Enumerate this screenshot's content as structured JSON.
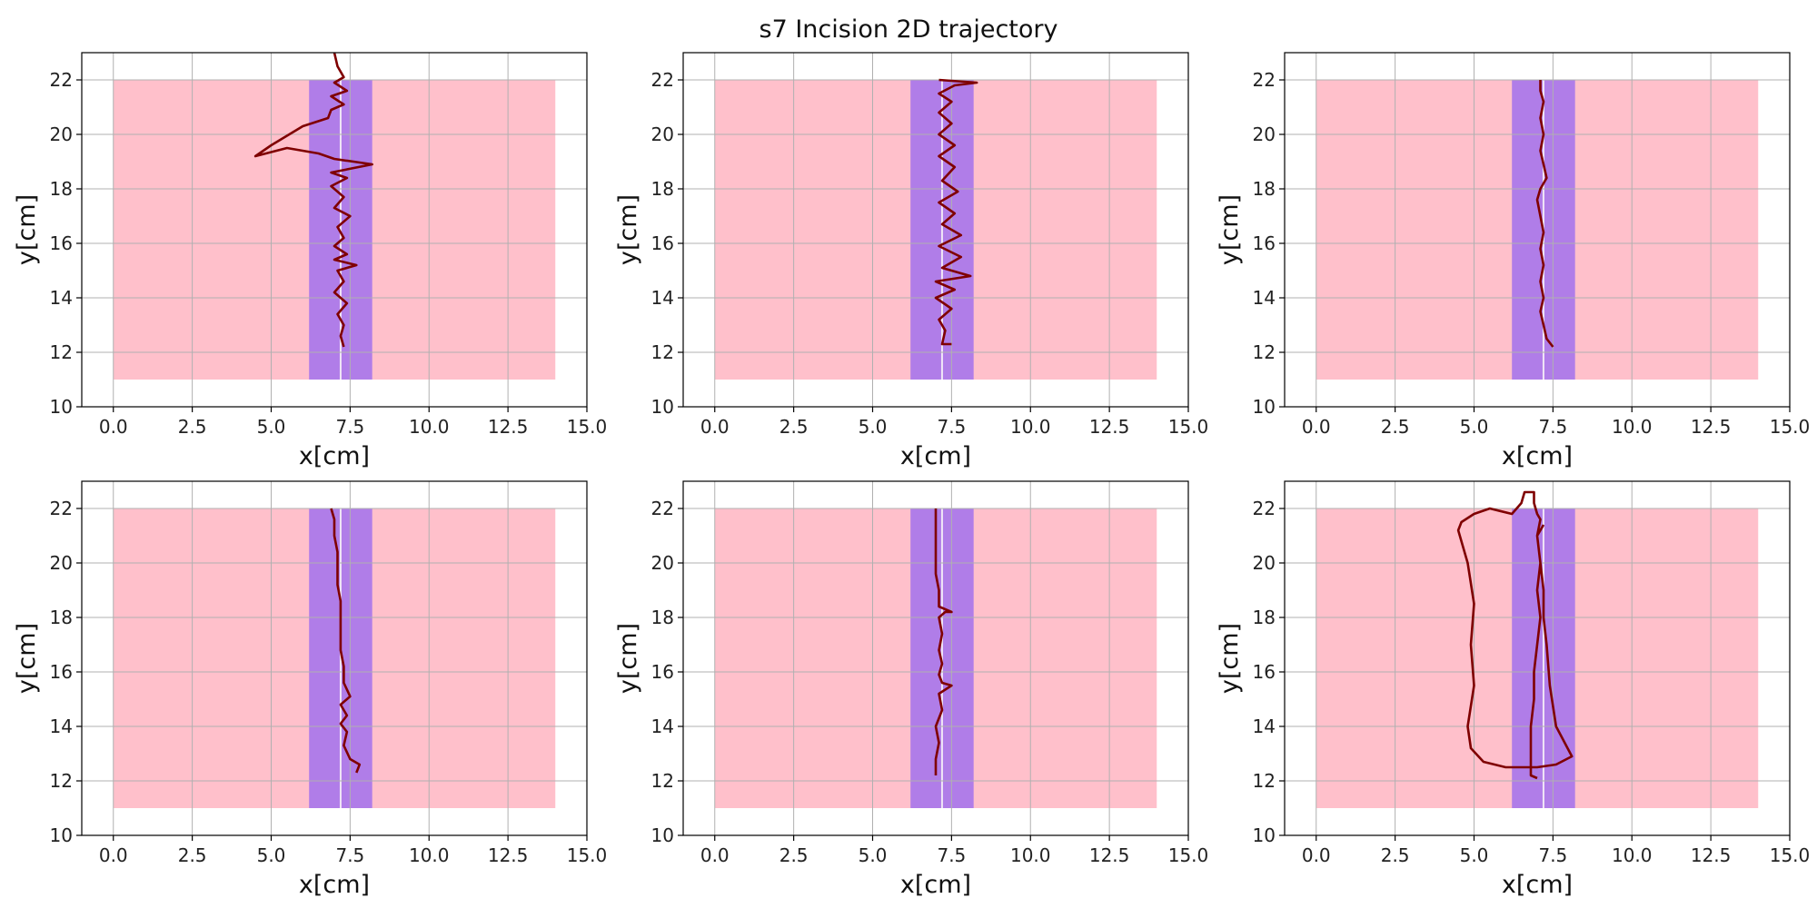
{
  "figure": {
    "title": "s7 Incision 2D trajectory"
  },
  "colors": {
    "region": "#ffc0cb",
    "band": "#b07de8",
    "centerline": "#f0e6f6",
    "trajectory": "#7f0000",
    "grid": "#b0b0b0",
    "axis": "#000000"
  },
  "chart_data": [
    {
      "type": "line",
      "xlabel": "x[cm]",
      "ylabel": "y[cm]",
      "xlim": [
        -1,
        15
      ],
      "ylim": [
        10,
        23
      ],
      "xticks": [
        "0.0",
        "2.5",
        "5.0",
        "7.5",
        "10.0",
        "12.5",
        "15.0"
      ],
      "yticks": [
        "10",
        "12",
        "14",
        "16",
        "18",
        "20",
        "22"
      ],
      "grid": true,
      "region": {
        "x": [
          0,
          14
        ],
        "y": [
          11,
          22
        ]
      },
      "band": {
        "x": [
          6.2,
          8.2
        ],
        "y": [
          11,
          22
        ]
      },
      "centerline": 7.2,
      "trajectory": [
        [
          7.3,
          12.2
        ],
        [
          7.2,
          12.6
        ],
        [
          7.3,
          13.0
        ],
        [
          7.1,
          13.4
        ],
        [
          7.4,
          13.8
        ],
        [
          7.0,
          14.2
        ],
        [
          7.3,
          14.6
        ],
        [
          7.1,
          15.0
        ],
        [
          7.7,
          15.2
        ],
        [
          7.0,
          15.4
        ],
        [
          7.4,
          15.6
        ],
        [
          7.0,
          15.9
        ],
        [
          7.3,
          16.2
        ],
        [
          7.1,
          16.6
        ],
        [
          7.5,
          17.0
        ],
        [
          7.0,
          17.3
        ],
        [
          7.3,
          17.7
        ],
        [
          6.9,
          18.1
        ],
        [
          7.4,
          18.4
        ],
        [
          6.9,
          18.6
        ],
        [
          8.2,
          18.9
        ],
        [
          7.0,
          19.1
        ],
        [
          6.5,
          19.3
        ],
        [
          5.5,
          19.5
        ],
        [
          4.5,
          19.2
        ],
        [
          5.0,
          19.6
        ],
        [
          6.0,
          20.3
        ],
        [
          6.8,
          20.6
        ],
        [
          6.9,
          20.9
        ],
        [
          7.3,
          21.1
        ],
        [
          6.9,
          21.4
        ],
        [
          7.4,
          21.6
        ],
        [
          7.0,
          21.9
        ],
        [
          7.3,
          22.1
        ],
        [
          7.1,
          22.5
        ],
        [
          7.0,
          23.0
        ]
      ]
    },
    {
      "type": "line",
      "xlabel": "x[cm]",
      "ylabel": "y[cm]",
      "xlim": [
        -1,
        15
      ],
      "ylim": [
        10,
        23
      ],
      "xticks": [
        "0.0",
        "2.5",
        "5.0",
        "7.5",
        "10.0",
        "12.5",
        "15.0"
      ],
      "yticks": [
        "10",
        "12",
        "14",
        "16",
        "18",
        "20",
        "22"
      ],
      "grid": true,
      "region": {
        "x": [
          0,
          14
        ],
        "y": [
          11,
          22
        ]
      },
      "band": {
        "x": [
          6.2,
          8.2
        ],
        "y": [
          11,
          22
        ]
      },
      "centerline": 7.2,
      "trajectory": [
        [
          7.5,
          12.3
        ],
        [
          7.2,
          12.3
        ],
        [
          7.3,
          12.8
        ],
        [
          7.1,
          13.2
        ],
        [
          7.5,
          13.6
        ],
        [
          7.0,
          14.0
        ],
        [
          7.6,
          14.3
        ],
        [
          7.0,
          14.6
        ],
        [
          8.1,
          14.8
        ],
        [
          7.2,
          15.1
        ],
        [
          7.8,
          15.5
        ],
        [
          7.1,
          15.9
        ],
        [
          7.8,
          16.3
        ],
        [
          7.2,
          16.7
        ],
        [
          7.6,
          17.1
        ],
        [
          7.1,
          17.5
        ],
        [
          7.7,
          17.9
        ],
        [
          7.2,
          18.3
        ],
        [
          7.6,
          18.8
        ],
        [
          7.1,
          19.2
        ],
        [
          7.6,
          19.6
        ],
        [
          7.1,
          20.0
        ],
        [
          7.5,
          20.4
        ],
        [
          7.1,
          20.8
        ],
        [
          7.5,
          21.2
        ],
        [
          7.1,
          21.5
        ],
        [
          7.6,
          21.8
        ],
        [
          8.3,
          21.9
        ],
        [
          7.1,
          22.0
        ]
      ]
    },
    {
      "type": "line",
      "xlabel": "x[cm]",
      "ylabel": "y[cm]",
      "xlim": [
        -1,
        15
      ],
      "ylim": [
        10,
        23
      ],
      "xticks": [
        "0.0",
        "2.5",
        "5.0",
        "7.5",
        "10.0",
        "12.5",
        "15.0"
      ],
      "yticks": [
        "10",
        "12",
        "14",
        "16",
        "18",
        "20",
        "22"
      ],
      "grid": true,
      "region": {
        "x": [
          0,
          14
        ],
        "y": [
          11,
          22
        ]
      },
      "band": {
        "x": [
          6.2,
          8.2
        ],
        "y": [
          11,
          22
        ]
      },
      "centerline": 7.2,
      "trajectory": [
        [
          7.5,
          12.2
        ],
        [
          7.3,
          12.5
        ],
        [
          7.2,
          13.0
        ],
        [
          7.1,
          13.5
        ],
        [
          7.2,
          14.0
        ],
        [
          7.1,
          14.6
        ],
        [
          7.2,
          15.2
        ],
        [
          7.1,
          15.8
        ],
        [
          7.2,
          16.4
        ],
        [
          7.1,
          17.0
        ],
        [
          7.0,
          17.6
        ],
        [
          7.1,
          18.0
        ],
        [
          7.3,
          18.4
        ],
        [
          7.2,
          18.9
        ],
        [
          7.1,
          19.4
        ],
        [
          7.2,
          20.0
        ],
        [
          7.1,
          20.6
        ],
        [
          7.2,
          21.2
        ],
        [
          7.1,
          21.6
        ],
        [
          7.1,
          22.0
        ]
      ]
    },
    {
      "type": "line",
      "xlabel": "x[cm]",
      "ylabel": "y[cm]",
      "xlim": [
        -1,
        15
      ],
      "ylim": [
        10,
        23
      ],
      "xticks": [
        "0.0",
        "2.5",
        "5.0",
        "7.5",
        "10.0",
        "12.5",
        "15.0"
      ],
      "yticks": [
        "10",
        "12",
        "14",
        "16",
        "18",
        "20",
        "22"
      ],
      "grid": true,
      "region": {
        "x": [
          0,
          14
        ],
        "y": [
          11,
          22
        ]
      },
      "band": {
        "x": [
          6.2,
          8.2
        ],
        "y": [
          11,
          22
        ]
      },
      "centerline": 7.2,
      "trajectory": [
        [
          7.7,
          12.3
        ],
        [
          7.8,
          12.6
        ],
        [
          7.5,
          12.8
        ],
        [
          7.3,
          13.3
        ],
        [
          7.4,
          13.8
        ],
        [
          7.2,
          14.1
        ],
        [
          7.4,
          14.4
        ],
        [
          7.2,
          14.8
        ],
        [
          7.5,
          15.1
        ],
        [
          7.3,
          15.6
        ],
        [
          7.3,
          16.2
        ],
        [
          7.2,
          16.8
        ],
        [
          7.2,
          17.5
        ],
        [
          7.2,
          18.0
        ],
        [
          7.2,
          18.6
        ],
        [
          7.1,
          19.2
        ],
        [
          7.1,
          19.8
        ],
        [
          7.1,
          20.4
        ],
        [
          7.0,
          21.0
        ],
        [
          7.0,
          21.6
        ],
        [
          6.9,
          22.0
        ]
      ]
    },
    {
      "type": "line",
      "xlabel": "x[cm]",
      "ylabel": "y[cm]",
      "xlim": [
        -1,
        15
      ],
      "ylim": [
        10,
        23
      ],
      "xticks": [
        "0.0",
        "2.5",
        "5.0",
        "7.5",
        "10.0",
        "12.5",
        "15.0"
      ],
      "yticks": [
        "10",
        "12",
        "14",
        "16",
        "18",
        "20",
        "22"
      ],
      "grid": true,
      "region": {
        "x": [
          0,
          14
        ],
        "y": [
          11,
          22
        ]
      },
      "band": {
        "x": [
          6.2,
          8.2
        ],
        "y": [
          11,
          22
        ]
      },
      "centerline": 7.2,
      "trajectory": [
        [
          7.0,
          12.2
        ],
        [
          7.0,
          12.8
        ],
        [
          7.1,
          13.4
        ],
        [
          7.0,
          14.0
        ],
        [
          7.2,
          14.6
        ],
        [
          7.1,
          15.2
        ],
        [
          7.5,
          15.5
        ],
        [
          7.2,
          15.6
        ],
        [
          7.1,
          15.9
        ],
        [
          7.2,
          16.3
        ],
        [
          7.1,
          16.8
        ],
        [
          7.2,
          17.4
        ],
        [
          7.1,
          18.0
        ],
        [
          7.3,
          18.2
        ],
        [
          7.5,
          18.2
        ],
        [
          7.1,
          18.4
        ],
        [
          7.1,
          19.0
        ],
        [
          7.0,
          19.6
        ],
        [
          7.0,
          20.3
        ],
        [
          7.0,
          21.0
        ],
        [
          7.0,
          21.6
        ],
        [
          7.0,
          22.0
        ]
      ]
    },
    {
      "type": "line",
      "xlabel": "x[cm]",
      "ylabel": "y[cm]",
      "xlim": [
        -1,
        15
      ],
      "ylim": [
        10,
        23
      ],
      "xticks": [
        "0.0",
        "2.5",
        "5.0",
        "7.5",
        "10.0",
        "12.5",
        "15.0"
      ],
      "yticks": [
        "10",
        "12",
        "14",
        "16",
        "18",
        "20",
        "22"
      ],
      "grid": true,
      "region": {
        "x": [
          0,
          14
        ],
        "y": [
          11,
          22
        ]
      },
      "band": {
        "x": [
          6.2,
          8.2
        ],
        "y": [
          11,
          22
        ]
      },
      "centerline": 7.2,
      "trajectory": [
        [
          7.0,
          12.1
        ],
        [
          6.8,
          12.2
        ],
        [
          6.8,
          13.0
        ],
        [
          6.8,
          14.0
        ],
        [
          6.9,
          15.0
        ],
        [
          6.9,
          16.0
        ],
        [
          7.0,
          17.0
        ],
        [
          7.1,
          18.0
        ],
        [
          7.0,
          19.0
        ],
        [
          7.1,
          20.0
        ],
        [
          7.0,
          21.0
        ],
        [
          7.1,
          21.6
        ],
        [
          7.0,
          21.8
        ],
        [
          6.9,
          22.2
        ],
        [
          6.9,
          22.6
        ],
        [
          6.6,
          22.6
        ],
        [
          6.5,
          22.2
        ],
        [
          6.2,
          21.8
        ],
        [
          5.5,
          22.0
        ],
        [
          5.0,
          21.8
        ],
        [
          4.6,
          21.5
        ],
        [
          4.5,
          21.2
        ],
        [
          4.8,
          20.0
        ],
        [
          5.0,
          18.5
        ],
        [
          4.9,
          17.0
        ],
        [
          5.0,
          15.5
        ],
        [
          4.8,
          14.0
        ],
        [
          4.9,
          13.2
        ],
        [
          5.3,
          12.7
        ],
        [
          6.0,
          12.5
        ],
        [
          7.0,
          12.5
        ],
        [
          7.6,
          12.6
        ],
        [
          8.1,
          12.9
        ],
        [
          7.6,
          14.0
        ],
        [
          7.4,
          15.5
        ],
        [
          7.3,
          17.0
        ],
        [
          7.2,
          18.0
        ],
        [
          7.2,
          19.0
        ],
        [
          7.1,
          20.0
        ],
        [
          7.0,
          21.0
        ],
        [
          7.2,
          21.4
        ]
      ]
    }
  ]
}
